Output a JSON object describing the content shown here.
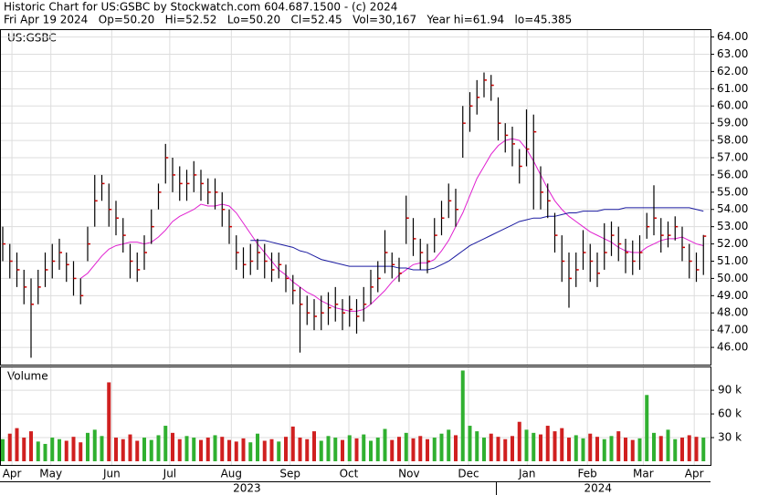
{
  "chart_data": {
    "type": "hlc",
    "title": "Historic Chart for US:GSBC by Stockwatch.com 604.687.1500 - (c) 2024",
    "subtitle": "Fri Apr 19 2024   Op=50.20   Hi=52.52   Lo=50.20   Cl=52.45   Vol=30,167   Year hi=61.94   lo=45.385",
    "symbol": "US:GSBC",
    "volume_label": "Volume",
    "grid": true,
    "bar_color": "#000000",
    "close_color": "#cc0000",
    "high": [
      53,
      52,
      51.5,
      50.5,
      50,
      50.5,
      51.5,
      52,
      52.3,
      51.5,
      51,
      50,
      53,
      56,
      56,
      55.5,
      54.5,
      53.5,
      52,
      51.5,
      52.5,
      54,
      55.5,
      57.8,
      57,
      56.5,
      56.3,
      56.8,
      56.3,
      55.8,
      55.8,
      55,
      54,
      52.5,
      51.8,
      52,
      52.3,
      52,
      51.5,
      51.5,
      50.8,
      50.2,
      49.5,
      49,
      48.8,
      49,
      49.2,
      49.5,
      48.8,
      49,
      48.8,
      49.5,
      50.5,
      51,
      52.8,
      51.5,
      51.2,
      54.8,
      53.5,
      52.3,
      52,
      53.5,
      54.5,
      55.5,
      55.2,
      60,
      60.8,
      61.5,
      61.94,
      61.8,
      60.5,
      59,
      58.8,
      57.5,
      59.8,
      59.5,
      56.5,
      55.5,
      53.8,
      52.5,
      51.5,
      51.5,
      52.8,
      52,
      51.5,
      53.2,
      53.3,
      53,
      52.3,
      52.2,
      52.5,
      53.8,
      55.4,
      53.5,
      53.3,
      53.6,
      53,
      52,
      51.5,
      52.52
    ],
    "low": [
      51,
      50,
      49.5,
      48.5,
      45.4,
      48.5,
      49.5,
      50,
      50.5,
      49.8,
      49,
      48.5,
      51,
      53,
      54.5,
      53,
      52.5,
      51.5,
      50,
      49.8,
      50.5,
      52,
      54,
      55.5,
      55,
      54.5,
      54.5,
      55,
      54.5,
      54.3,
      54,
      53,
      52,
      50.5,
      50,
      50.2,
      50.5,
      50,
      49.8,
      50,
      49.2,
      48.5,
      45.7,
      47.3,
      47,
      47,
      47.3,
      47.5,
      47,
      47.2,
      46.8,
      47.5,
      48.5,
      49.2,
      50.3,
      50,
      49.8,
      52,
      51.3,
      50.5,
      50.3,
      51.5,
      52.5,
      53.5,
      53,
      57,
      58.5,
      59.5,
      60.5,
      60.3,
      58,
      57.3,
      56.5,
      55.5,
      56.5,
      54,
      54,
      53.5,
      51.5,
      49.8,
      48.3,
      49.5,
      50.5,
      49.8,
      49.5,
      50.5,
      51.3,
      51,
      50.3,
      50.2,
      50.5,
      52.3,
      52.5,
      51.5,
      51.8,
      52.2,
      51,
      50,
      49.8,
      50.2
    ],
    "close": [
      52,
      51,
      50.5,
      49.5,
      48.5,
      49.5,
      50.5,
      51,
      51.5,
      50.8,
      50,
      49,
      52,
      54.5,
      55.5,
      54,
      53.5,
      52.5,
      51,
      50.5,
      51.5,
      53,
      55,
      57,
      56,
      55.5,
      55.5,
      56,
      55.5,
      55,
      55,
      54,
      53,
      51.5,
      50.8,
      51,
      51.5,
      51,
      50.5,
      50.8,
      50,
      49.3,
      48.5,
      48,
      47.8,
      48,
      48.3,
      48.5,
      48,
      48.2,
      47.8,
      48.5,
      49.5,
      50,
      51.5,
      50.8,
      50.3,
      53.5,
      52.3,
      51.5,
      51,
      52.5,
      53.5,
      54.5,
      54,
      59,
      60,
      60.5,
      61.5,
      61.2,
      59,
      58.3,
      57.8,
      56.5,
      57.5,
      58.5,
      55,
      54.5,
      52.5,
      51,
      50,
      50.5,
      51.5,
      51,
      50.3,
      51.5,
      52.5,
      52,
      51.5,
      51,
      51.5,
      53,
      53.5,
      52.5,
      52.5,
      53,
      51.8,
      51,
      50.5,
      52.45
    ],
    "series": [
      {
        "color": "#e020d0",
        "values": [
          null,
          null,
          null,
          null,
          null,
          null,
          null,
          null,
          null,
          null,
          null,
          50,
          50.3,
          50.8,
          51.3,
          51.7,
          51.9,
          52,
          52.1,
          52.1,
          52,
          52.1,
          52.4,
          52.8,
          53.3,
          53.6,
          53.8,
          54,
          54.3,
          54.2,
          54.2,
          54.3,
          54.2,
          53.8,
          53.2,
          52.6,
          52,
          51.5,
          51,
          50.5,
          50.2,
          49.8,
          49.5,
          49.2,
          49,
          48.7,
          48.5,
          48.3,
          48.2,
          48.1,
          48.1,
          48.2,
          48.5,
          48.9,
          49.3,
          49.8,
          50.2,
          50.5,
          50.8,
          50.9,
          50.9,
          51.1,
          51.6,
          52.2,
          53,
          53.8,
          54.8,
          55.8,
          56.5,
          57.2,
          57.7,
          58,
          58.1,
          58,
          57.5,
          56.8,
          56,
          55.2,
          54.5,
          54,
          53.6,
          53.3,
          53,
          52.7,
          52.5,
          52.3,
          52.1,
          51.8,
          51.6,
          51.5,
          51.5,
          51.8,
          52,
          52.2,
          52.3,
          52.3,
          52.4,
          52.2,
          52,
          51.9
        ]
      },
      {
        "color": "#1a1aa0",
        "values": [
          null,
          null,
          null,
          null,
          null,
          null,
          null,
          null,
          null,
          null,
          null,
          null,
          null,
          null,
          null,
          null,
          null,
          null,
          null,
          null,
          null,
          null,
          null,
          null,
          null,
          null,
          null,
          null,
          null,
          null,
          null,
          null,
          null,
          null,
          null,
          52.2,
          52.2,
          52.2,
          52.1,
          52,
          51.9,
          51.8,
          51.6,
          51.5,
          51.3,
          51.1,
          51,
          50.9,
          50.8,
          50.7,
          50.7,
          50.7,
          50.7,
          50.7,
          50.7,
          50.7,
          50.6,
          50.6,
          50.5,
          50.5,
          50.5,
          50.6,
          50.8,
          51,
          51.3,
          51.6,
          51.9,
          52.1,
          52.3,
          52.5,
          52.7,
          52.9,
          53.1,
          53.3,
          53.4,
          53.5,
          53.5,
          53.6,
          53.6,
          53.7,
          53.8,
          53.8,
          53.9,
          53.9,
          53.9,
          54,
          54,
          54,
          54.1,
          54.1,
          54.1,
          54.1,
          54.1,
          54.1,
          54.1,
          54.1,
          54.1,
          54.1,
          54,
          53.9
        ]
      }
    ],
    "volume": [
      28000,
      35000,
      42000,
      30000,
      38000,
      25000,
      22000,
      30000,
      28000,
      26000,
      31000,
      24000,
      36000,
      40000,
      32000,
      100000,
      30000,
      28000,
      34000,
      26000,
      30000,
      27000,
      33000,
      45000,
      36000,
      28000,
      32000,
      30000,
      27000,
      30000,
      33000,
      31000,
      27000,
      25000,
      29000,
      24000,
      35000,
      26000,
      28000,
      25000,
      31000,
      44000,
      30000,
      28000,
      38000,
      26000,
      32000,
      30000,
      27000,
      33000,
      29000,
      34000,
      26000,
      30000,
      41000,
      27000,
      31000,
      36000,
      29000,
      32000,
      28000,
      30000,
      35000,
      40000,
      33000,
      115000,
      45000,
      38000,
      30000,
      35000,
      31000,
      28000,
      32000,
      50000,
      40000,
      36000,
      34000,
      45000,
      38000,
      42000,
      30000,
      33000,
      29000,
      35000,
      31000,
      28000,
      32000,
      38000,
      30000,
      27000,
      29000,
      84000,
      36000,
      32000,
      40000,
      28000,
      30000,
      33000,
      31000,
      30000
    ],
    "up_color": "#30b030",
    "down_color": "#d02020",
    "ylim": [
      45,
      64.4
    ],
    "yticks": [
      {
        "value": 46,
        "label": "46.00"
      },
      {
        "value": 47,
        "label": "47.00"
      },
      {
        "value": 48,
        "label": "48.00"
      },
      {
        "value": 49,
        "label": "49.00"
      },
      {
        "value": 50,
        "label": "50.00"
      },
      {
        "value": 51,
        "label": "51.00"
      },
      {
        "value": 52,
        "label": "52.00"
      },
      {
        "value": 53,
        "label": "53.00"
      },
      {
        "value": 54,
        "label": "54.00"
      },
      {
        "value": 55,
        "label": "55.00"
      },
      {
        "value": 56,
        "label": "56.00"
      },
      {
        "value": 57,
        "label": "57.00"
      },
      {
        "value": 58,
        "label": "58.00"
      },
      {
        "value": 59,
        "label": "59.00"
      },
      {
        "value": 60,
        "label": "60.00"
      },
      {
        "value": 61,
        "label": "61.00"
      },
      {
        "value": 62,
        "label": "62.00"
      },
      {
        "value": 63,
        "label": "63.00"
      },
      {
        "value": 64,
        "label": "64.00"
      }
    ],
    "vlim": [
      0,
      119000
    ],
    "vticks": [
      {
        "value": 30000,
        "label": "30 k"
      },
      {
        "value": 60000,
        "label": "60 k"
      },
      {
        "value": 90000,
        "label": "90 k"
      }
    ],
    "xticks": [
      {
        "value": 1.3,
        "label": "Apr"
      },
      {
        "value": 6.8,
        "label": "May"
      },
      {
        "value": 15.4,
        "label": "Jun"
      },
      {
        "value": 23.6,
        "label": "Jul"
      },
      {
        "value": 32.3,
        "label": "Aug"
      },
      {
        "value": 40.6,
        "label": "Sep"
      },
      {
        "value": 48.9,
        "label": "Oct"
      },
      {
        "value": 57.4,
        "label": "Nov"
      },
      {
        "value": 65.8,
        "label": "Dec"
      },
      {
        "value": 74.1,
        "label": "Jan"
      },
      {
        "value": 82.6,
        "label": "Feb"
      },
      {
        "value": 90.5,
        "label": "Mar"
      },
      {
        "value": 97.7,
        "label": "Apr"
      }
    ],
    "years": [
      {
        "value": 34.5,
        "label": "2023"
      },
      {
        "value": 84.1,
        "label": "2024"
      }
    ]
  }
}
